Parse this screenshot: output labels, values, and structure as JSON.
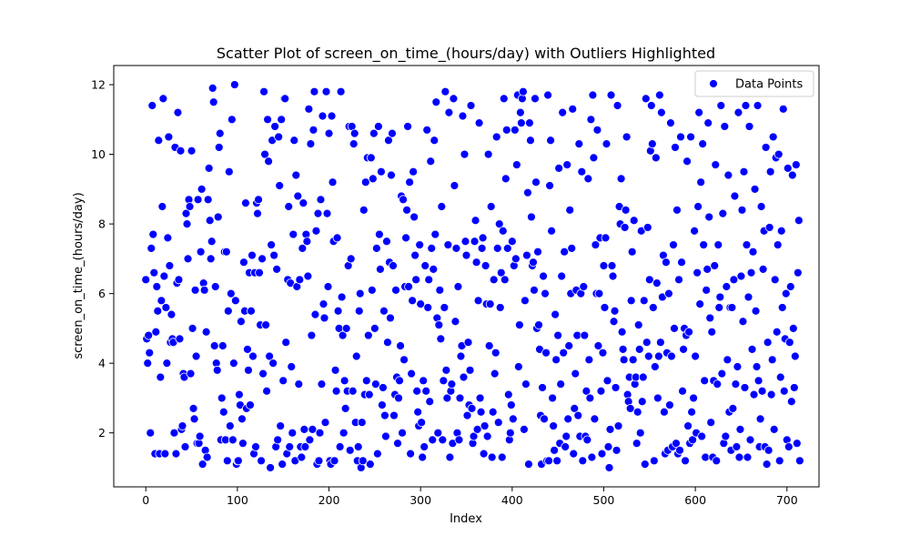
{
  "chart_data": {
    "type": "scatter",
    "title": "Scatter Plot of screen_on_time_(hours/day) with Outliers Highlighted",
    "xlabel": "Index",
    "ylabel": "screen_on_time_(hours/day)",
    "xlim": [
      -35,
      735
    ],
    "ylim": [
      0.45,
      12.55
    ],
    "xticks": [
      0,
      100,
      200,
      300,
      400,
      500,
      600,
      700
    ],
    "yticks": [
      2,
      4,
      6,
      8,
      10,
      12
    ],
    "grid": false,
    "legend_position": "top-right",
    "series": [
      {
        "name": "Data Points",
        "color": "#0000ff",
        "marker": "circle",
        "points_count": 700,
        "y_pattern": "uniform-random-1-to-12",
        "y_values": [
          6.4,
          4.7,
          4.0,
          4.8,
          4.3,
          2.0,
          7.3,
          11.4,
          7.7,
          6.6,
          1.4,
          4.9,
          6.2,
          5.5,
          10.4,
          1.4,
          3.6,
          5.8,
          8.5,
          11.6,
          6.5,
          1.4,
          5.6,
          4.0,
          7.6,
          10.5,
          6.8,
          4.6,
          5.4,
          4.7,
          4.6,
          2.0,
          10.2,
          1.4,
          6.3,
          11.2,
          6.4,
          4.7,
          10.1,
          2.1,
          2.2,
          3.7,
          3.6,
          1.6,
          8.3,
          8.0,
          7.0,
          8.7,
          8.5,
          3.7,
          10.1,
          5.0,
          2.7,
          2.4,
          6.1,
          4.2,
          1.7,
          8.7,
          1.7,
          1.9,
          7.2,
          9.0,
          1.1,
          6.3,
          6.1,
          1.5,
          4.9,
          1.3,
          8.7,
          9.6,
          8.1,
          7.0,
          7.5,
          11.9,
          11.5,
          4.5,
          6.2,
          4.0,
          3.8,
          8.2,
          10.2,
          10.6,
          1.8,
          3.0,
          4.5,
          2.6,
          7.2,
          1.8,
          7.2,
          1.2,
          5.5,
          9.5,
          2.2,
          6.0,
          11.0,
          1.8,
          4.0,
          12.0,
          5.8,
          1.1,
          1.2,
          1.2,
          3.1,
          2.8,
          5.2,
          2.4,
          1.7,
          6.9,
          5.5,
          8.6,
          2.7,
          4.4,
          3.8,
          6.6,
          2.8,
          5.5,
          7.1,
          4.2,
          1.4,
          6.6,
          1.6,
          8.6,
          8.3,
          8.7,
          6.6,
          5.1,
          1.2,
          7.0,
          3.7,
          11.8,
          10.0,
          5.1,
          3.2,
          11.0,
          9.8,
          4.2,
          1.0,
          7.4,
          10.4,
          4.0,
          7.1,
          10.8,
          1.6,
          6.7,
          1.8,
          10.5,
          9.1,
          2.2,
          11.0,
          1.1,
          3.5,
          11.6,
          11.6,
          4.6,
          1.4,
          6.4,
          8.5,
          1.6,
          6.3,
          3.9,
          2.0,
          7.7,
          10.4,
          1.2,
          9.4,
          6.2,
          8.8,
          3.4,
          6.4,
          1.6,
          1.3,
          7.3,
          8.6,
          2.1,
          1.6,
          7.7,
          7.5,
          6.5,
          11.3,
          1.8,
          10.3,
          4.8,
          2.1,
          10.7,
          11.8,
          5.4,
          7.8,
          1.1,
          8.3,
          1.2,
          2.0,
          8.7,
          3.4,
          11.1,
          5.7,
          5.3,
          2.3,
          11.8,
          8.3,
          6.2,
          10.6,
          1.2,
          1.1,
          11.1,
          9.2,
          7.5,
          1.2,
          3.8,
          3.2,
          7.6,
          5.5,
          5.0,
          1.6,
          11.8,
          5.9,
          4.8,
          2.0,
          3.5,
          2.7,
          5.0,
          3.2,
          6.8,
          10.8,
          1.5,
          7.0,
          10.8,
          3.2,
          10.3,
          10.6,
          2.3,
          4.2,
          1.2,
          1.6,
          5.5,
          6.0,
          1.0,
          2.3,
          1.2,
          8.4,
          3.1,
          9.2,
          3.5,
          9.9,
          4.8,
          3.1,
          1.1,
          9.9,
          6.1,
          9.3,
          10.6,
          5.0,
          3.4,
          7.3,
          1.4,
          10.8,
          7.7,
          6.7,
          9.5,
          2.8,
          3.3,
          5.5,
          2.5,
          1.9,
          7.5,
          4.6,
          10.4,
          6.9,
          5.3,
          9.4,
          10.6,
          6.8,
          2.5,
          3.1,
          6.1,
          3.6,
          1.7,
          3.0,
          3.5,
          4.5,
          8.8,
          2.0,
          8.7,
          4.1,
          6.2,
          7.6,
          8.4,
          10.8,
          6.2,
          9.2,
          1.4,
          3.7,
          5.8,
          9.5,
          8.2,
          7.1,
          6.4,
          3.2,
          2.6,
          2.2,
          7.4,
          5.7,
          2.3,
          1.3,
          3.5,
          1.6,
          6.8,
          3.2,
          10.7,
          5.6,
          6.4,
          2.9,
          9.8,
          7.3,
          1.8,
          6.7,
          10.4,
          7.7,
          11.5,
          5.3,
          2.0,
          5.1,
          6.1,
          4.7,
          8.5,
          1.8,
          3.5,
          5.6,
          11.8,
          3.8,
          3.0,
          7.4,
          11.2,
          1.3,
          3.2,
          3.4,
          1.7,
          11.6,
          9.1,
          5.2,
          7.3,
          2.0,
          6.2,
          1.8,
          3.0,
          4.2,
          4.5,
          11.1,
          3.6,
          10.0,
          7.5,
          7.1,
          2.5,
          4.6,
          2.8,
          3.8,
          11.4,
          2.7,
          1.7,
          1.9,
          7.5,
          8.1,
          6.9,
          2.1,
          5.8,
          10.9,
          3.0,
          2.6,
          7.3,
          7.6,
          1.4,
          2.2,
          6.8,
          5.7,
          1.9,
          10.0,
          4.5,
          5.7,
          8.5,
          1.3,
          2.6,
          6.4,
          3.7,
          4.3,
          10.5,
          7.3,
          2.3,
          8.0,
          5.6,
          6.6,
          1.3,
          7.8,
          11.6,
          6.4,
          9.3,
          10.7,
          7.3,
          3.1,
          1.8,
          2.0,
          2.8,
          7.5,
          2.4,
          6.8,
          10.7,
          7.0,
          9.7,
          11.7,
          3.9,
          5.1,
          11.2,
          10.9,
          11.6,
          11.8,
          2.1,
          5.8,
          3.4,
          7.1,
          8.9,
          1.1,
          10.9,
          10.4,
          8.2,
          6.8,
          6.9,
          6.1,
          11.6,
          9.2,
          5.0,
          7.2,
          5.1,
          4.4,
          2.5,
          1.1,
          3.3,
          6.5,
          2.4,
          6.0,
          4.3,
          1.2,
          11.7,
          1.2,
          9.1,
          10.4,
          7.8,
          3.0,
          2.2,
          1.5,
          5.4,
          4.1,
          1.2,
          4.8,
          9.6,
          1.7,
          3.4,
          6.5,
          11.2,
          4.3,
          7.2,
          1.6,
          1.9,
          9.7,
          2.4,
          4.5,
          8.4,
          6.0,
          7.3,
          11.3,
          1.4,
          2.7,
          3.7,
          6.1,
          4.8,
          2.5,
          10.3,
          1.9,
          6.0,
          9.5,
          1.2,
          6.2,
          4.8,
          1.9,
          3.2,
          1.8,
          9.3,
          4.1,
          3.0,
          11.0,
          1.3,
          11.7,
          9.9,
          2.4,
          7.4,
          6.0,
          10.7,
          4.5,
          6.0,
          7.6,
          3.2,
          1.4,
          4.3,
          6.8,
          5.6,
          7.6,
          10.3,
          3.5,
          1.6,
          1.0,
          2.1,
          11.7,
          6.8,
          6.5,
          5.2,
          5.5,
          3.3,
          1.5,
          11.4,
          2.2,
          8.5,
          8.0,
          9.3,
          4.9,
          4.4,
          4.1,
          7.9,
          8.4,
          10.5,
          3.1,
          2.9,
          3.6,
          2.7,
          5.8,
          7.2,
          4.1,
          8.1,
          3.4,
          3.6,
          1.7,
          2.6,
          5.1,
          4.4,
          2.0,
          7.8,
          2.9,
          3.6,
          5.8,
          1.1,
          11.6,
          4.6,
          7.9,
          4.2,
          6.4,
          10.1,
          11.4,
          10.3,
          5.6,
          1.2,
          3.9,
          9.9,
          6.3,
          3.0,
          4.2,
          11.7,
          4.6,
          11.2,
          5.9,
          7.1,
          2.6,
          1.4,
          6.9,
          4.3,
          1.5,
          6.0,
          2.8,
          10.9,
          4.2,
          1.6,
          7.4,
          5.0,
          10.2,
          1.7,
          8.4,
          1.4,
          6.4,
          1.5,
          10.5,
          6.9,
          3.2,
          4.4,
          5.0,
          1.2,
          4.8,
          9.8,
          2.2,
          4.9,
          1.7,
          10.5,
          2.6,
          1.8,
          3.0,
          7.8,
          4.2,
          2.0,
          6.6,
          8.5,
          11.2,
          5.7,
          9.2,
          1.9,
          10.3,
          7.4,
          3.5,
          1.3,
          6.1,
          6.7,
          10.9,
          8.2,
          5.3,
          2.3,
          4.9,
          1.3,
          3.5,
          6.8,
          9.7,
          1.2,
          3.4,
          7.4,
          5.6,
          5.9,
          11.4,
          3.7,
          8.3,
          1.7,
          10.8,
          1.9,
          6.2,
          4.1,
          9.4,
          2.6,
          5.6,
          1.5,
          5.6,
          2.7,
          6.4,
          8.8,
          3.4,
          1.6,
          3.9,
          11.2,
          1.3,
          2.1,
          6.5,
          8.4,
          5.2,
          9.5,
          3.3,
          11.4,
          7.4,
          1.3,
          5.9,
          10.8,
          1.8,
          6.6,
          4.4,
          7.2,
          3.1,
          9.0,
          5.5,
          3.9,
          11.4,
          3.5,
          1.6,
          2.4,
          8.5,
          3.2,
          6.7,
          7.8,
          1.6,
          10.2,
          1.1,
          4.6,
          1.5,
          7.9,
          9.5,
          3.1,
          4.1,
          10.5,
          2.1,
          6.4,
          9.9,
          4.9,
          7.4,
          10.0,
          1.2,
          3.6,
          7.8,
          5.6,
          11.3,
          3.2,
          4.7,
          6.0,
          1.8,
          9.6,
          1.6,
          4.6,
          6.2,
          2.9,
          9.4,
          5.0,
          3.3,
          4.2,
          9.7,
          1.7,
          6.6,
          8.1,
          1.2
        ]
      }
    ],
    "legend": [
      {
        "label": "Data Points",
        "color": "#0000ff"
      }
    ]
  }
}
